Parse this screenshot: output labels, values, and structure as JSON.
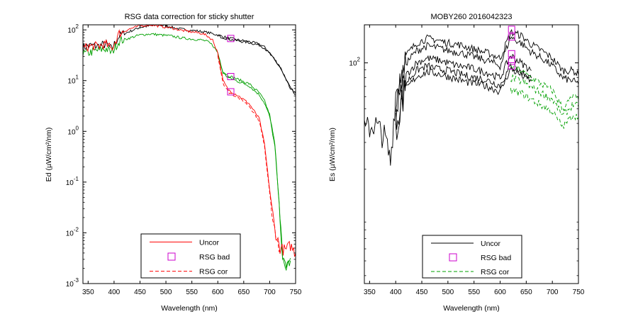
{
  "chart_data": [
    {
      "type": "line",
      "title": "RSG data correction for sticky shutter",
      "xlabel": "Wavelength (nm)",
      "ylabel": "Ed (µW/cm²/nm)",
      "xlim": [
        340,
        750
      ],
      "ylim_log10": [
        -3,
        2.1
      ],
      "yscale": "log",
      "xticks": [
        "350",
        "400",
        "450",
        "500",
        "550",
        "600",
        "650",
        "700",
        "750"
      ],
      "yticks": [
        {
          "base": "10",
          "exp": "2",
          "value": 2
        },
        {
          "base": "10",
          "exp": "1",
          "value": 1
        },
        {
          "base": "10",
          "exp": "0",
          "value": 0
        },
        {
          "base": "10",
          "exp": "-1",
          "value": -1
        },
        {
          "base": "10",
          "exp": "-2",
          "value": -2
        },
        {
          "base": "10",
          "exp": "-3",
          "value": -3
        }
      ],
      "legend": {
        "placement": "bottom-center",
        "entries": [
          {
            "label": "Uncor",
            "style": "solid",
            "color": "#ff0000"
          },
          {
            "label": "RSG bad",
            "style": "square-marker",
            "color": "#cc00cc"
          },
          {
            "label": "RSG cor",
            "style": "dashed",
            "color": "#ff0000"
          }
        ]
      },
      "colors": {
        "black": "#000000",
        "green": "#00a000",
        "red": "#ff0000",
        "marker": "#cc00cc"
      },
      "series": [
        {
          "color": "#000000",
          "style": "solid",
          "x": [
            340,
            355,
            370,
            385,
            395,
            410,
            430,
            450,
            470,
            480,
            500,
            520,
            540,
            560,
            580,
            600,
            620,
            640,
            660,
            680,
            690,
            700,
            720,
            740,
            750
          ],
          "y": [
            1.66,
            1.69,
            1.68,
            1.72,
            1.62,
            1.88,
            1.97,
            2.05,
            2.08,
            2.1,
            2.08,
            2.03,
            2.0,
            1.98,
            1.95,
            1.9,
            1.84,
            1.8,
            1.77,
            1.72,
            1.66,
            1.55,
            1.28,
            0.85,
            0.75
          ]
        },
        {
          "color": "#000000",
          "style": "solid",
          "x": [
            600,
            620,
            640,
            660,
            680,
            690,
            700,
            720,
            740,
            750
          ],
          "y": [
            1.88,
            1.82,
            1.78,
            1.75,
            1.7,
            1.64,
            1.53,
            1.26,
            0.83,
            0.73
          ]
        },
        {
          "color": "#00a000",
          "style": "solid",
          "x": [
            340,
            355,
            370,
            385,
            395,
            410,
            430,
            450,
            470,
            490,
            510,
            530,
            550,
            570,
            580,
            590,
            600,
            610,
            620,
            640,
            660,
            680,
            690,
            700,
            710,
            715,
            720,
            725,
            730,
            740
          ],
          "y": [
            1.52,
            1.56,
            1.6,
            1.63,
            1.55,
            1.78,
            1.84,
            1.9,
            1.92,
            1.9,
            1.88,
            1.84,
            1.82,
            1.8,
            1.77,
            1.7,
            1.55,
            1.18,
            1.1,
            1.02,
            0.94,
            0.76,
            0.6,
            0.33,
            -0.25,
            -0.95,
            -1.6,
            -2.55,
            -2.65,
            -2.5
          ]
        },
        {
          "color": "#00a000",
          "style": "solid",
          "x": [
            600,
            610,
            620,
            640,
            660,
            680,
            690,
            700,
            710,
            715,
            720,
            725,
            730,
            740
          ],
          "y": [
            1.52,
            1.15,
            1.06,
            0.98,
            0.9,
            0.72,
            0.56,
            0.29,
            -0.3,
            -1.0,
            -1.65,
            -2.6,
            -2.7,
            -2.55
          ]
        },
        {
          "color": "#ff0000",
          "style": "solid",
          "x": [
            340,
            355,
            370,
            385,
            395,
            410,
            430,
            450,
            470,
            490,
            510,
            530,
            550,
            570,
            580,
            590,
            600,
            610,
            620,
            640,
            660,
            680,
            690,
            700,
            710,
            720,
            730,
            740,
            750
          ],
          "y": [
            1.64,
            1.68,
            1.68,
            1.72,
            1.62,
            1.93,
            2.02,
            2.08,
            2.1,
            2.07,
            2.04,
            1.99,
            1.96,
            1.93,
            1.88,
            1.8,
            1.55,
            1.0,
            0.82,
            0.7,
            0.55,
            0.25,
            -0.25,
            -1.15,
            -1.95,
            -2.3,
            -2.35,
            -2.25,
            -2.4
          ]
        },
        {
          "color": "#ff0000",
          "style": "dashed",
          "x": [
            600,
            610,
            620,
            640,
            660,
            680,
            690,
            700,
            710,
            720
          ],
          "y": [
            1.5,
            0.96,
            0.78,
            0.66,
            0.51,
            0.21,
            -0.3,
            -1.2,
            -2.0,
            -2.35
          ]
        }
      ],
      "markers": [
        {
          "x": 625,
          "y": 1.83
        },
        {
          "x": 625,
          "y": 1.08
        },
        {
          "x": 625,
          "y": 0.78
        }
      ]
    },
    {
      "type": "line",
      "title": "MOBY260  2016042323",
      "xlabel": "Wavelength (nm)",
      "ylabel": "Es (µW/cm²/nm)",
      "xlim": [
        340,
        750
      ],
      "ylim_log10": [
        0.55,
        2.25
      ],
      "yscale": "log",
      "xticks": [
        "350",
        "400",
        "450",
        "500",
        "550",
        "600",
        "650",
        "700",
        "750"
      ],
      "yticks": [
        {
          "base": "10",
          "exp": "2",
          "value": 2
        }
      ],
      "legend": {
        "placement": "bottom-center",
        "entries": [
          {
            "label": "Uncor",
            "style": "solid",
            "color": "#000000"
          },
          {
            "label": "RSG bad",
            "style": "square-marker",
            "color": "#cc00cc"
          },
          {
            "label": "RSG cor",
            "style": "dashed",
            "color": "#00a000"
          }
        ]
      },
      "colors": {
        "black": "#000000",
        "green": "#00a000",
        "marker": "#cc00cc"
      },
      "series": [
        {
          "color": "#000000",
          "style": "solid",
          "x": [
            340,
            360,
            380,
            390,
            400,
            420,
            440,
            460,
            480,
            500,
            520,
            540,
            560,
            580,
            600,
            620,
            640,
            660,
            680,
            700,
            720,
            740,
            750
          ],
          "y": [
            1.55,
            1.6,
            1.5,
            1.35,
            1.8,
            2.05,
            2.13,
            2.16,
            2.15,
            2.13,
            2.12,
            2.1,
            2.08,
            2.06,
            2.03,
            2.2,
            2.18,
            2.12,
            2.08,
            2.03,
            1.95,
            1.95,
            1.92
          ]
        },
        {
          "color": "#000000",
          "style": "solid",
          "x": [
            400,
            420,
            440,
            460,
            480,
            500,
            520,
            540,
            560,
            580,
            600,
            620,
            640,
            660,
            680,
            700,
            720,
            740,
            750
          ],
          "y": [
            1.75,
            2.0,
            2.08,
            2.11,
            2.1,
            2.08,
            2.07,
            2.05,
            2.03,
            2.01,
            1.98,
            2.17,
            2.13,
            2.07,
            2.03,
            1.98,
            1.9,
            1.88,
            1.86
          ]
        },
        {
          "color": "#000000",
          "style": "solid",
          "x": [
            400,
            420,
            440,
            460,
            480,
            500,
            520,
            540,
            560,
            580,
            600,
            620,
            640,
            660
          ],
          "y": [
            1.65,
            1.92,
            2.0,
            2.03,
            2.02,
            2.0,
            1.98,
            1.97,
            1.95,
            1.93,
            1.9,
            2.05,
            2.0,
            1.95
          ]
        },
        {
          "color": "#000000",
          "style": "solid",
          "x": [
            400,
            420,
            440,
            460,
            480,
            500,
            520,
            540,
            560,
            580,
            600,
            620,
            640,
            660
          ],
          "y": [
            1.6,
            1.87,
            1.95,
            1.98,
            1.96,
            1.95,
            1.93,
            1.91,
            1.9,
            1.88,
            1.85,
            1.98,
            1.94,
            1.9
          ]
        },
        {
          "color": "#000000",
          "style": "solid",
          "x": [
            400,
            420,
            440,
            460,
            480,
            500,
            520,
            540,
            560,
            580,
            600,
            620,
            640,
            660
          ],
          "y": [
            1.55,
            1.83,
            1.91,
            1.94,
            1.93,
            1.91,
            1.89,
            1.87,
            1.86,
            1.84,
            1.81,
            1.96,
            1.92,
            1.88
          ]
        },
        {
          "color": "#00a000",
          "style": "dashed",
          "x": [
            620,
            640,
            660,
            680,
            700,
            720,
            740,
            750
          ],
          "y": [
            1.98,
            1.95,
            1.9,
            1.86,
            1.82,
            1.7,
            1.78,
            1.76
          ]
        },
        {
          "color": "#00a000",
          "style": "dashed",
          "x": [
            620,
            640,
            660,
            680,
            700,
            720,
            740,
            750
          ],
          "y": [
            1.9,
            1.88,
            1.84,
            1.8,
            1.76,
            1.65,
            1.73,
            1.71
          ]
        },
        {
          "color": "#00a000",
          "style": "dashed",
          "x": [
            620,
            640,
            660,
            680,
            700,
            720,
            740,
            750
          ],
          "y": [
            1.82,
            1.8,
            1.76,
            1.72,
            1.68,
            1.58,
            1.66,
            1.64
          ]
        }
      ],
      "markers": [
        {
          "x": 622,
          "y": 2.22
        },
        {
          "x": 622,
          "y": 2.17
        },
        {
          "x": 622,
          "y": 2.06
        },
        {
          "x": 622,
          "y": 2.01
        },
        {
          "x": 622,
          "y": 1.98
        }
      ]
    }
  ]
}
